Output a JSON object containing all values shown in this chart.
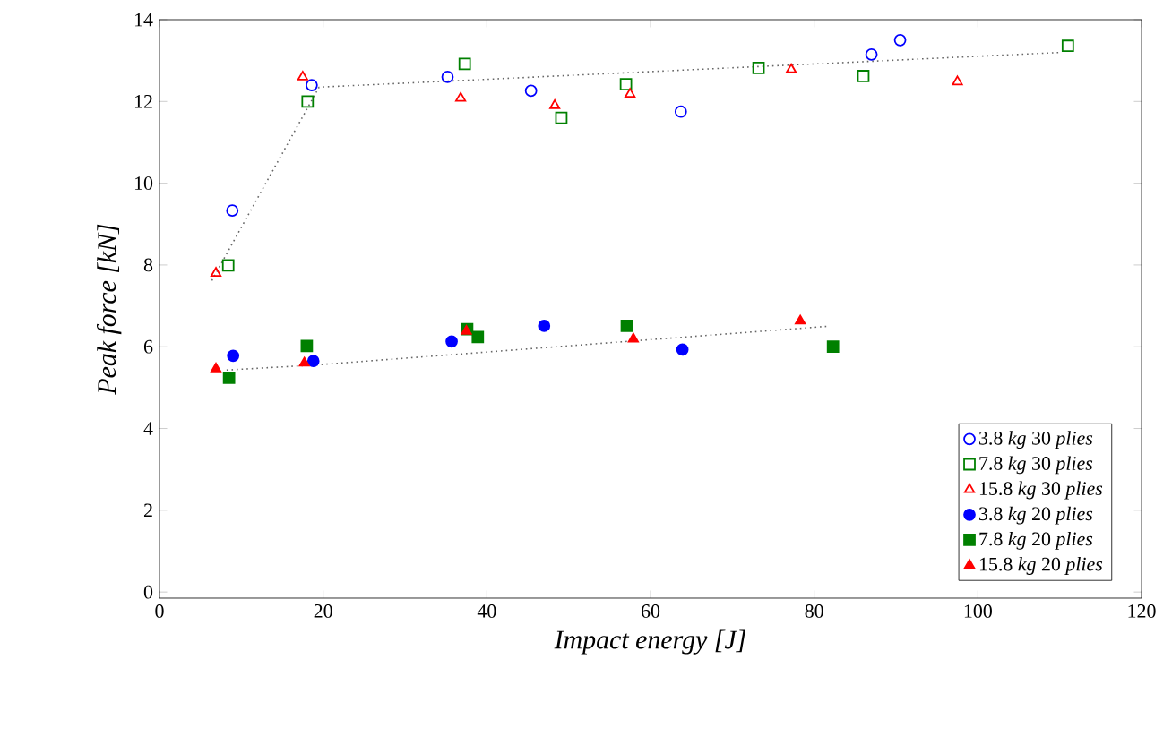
{
  "chart_data": {
    "type": "scatter",
    "xlabel": "Impact energy [J]",
    "ylabel": "Peak force [kN]",
    "xlim": [
      0,
      120
    ],
    "ylim": [
      -0.15,
      14
    ],
    "xticks": [
      0,
      20,
      40,
      60,
      80,
      100,
      120
    ],
    "yticks": [
      0,
      2,
      4,
      6,
      8,
      10,
      12,
      14
    ],
    "grid": false,
    "legend": "bottom right",
    "series": [
      {
        "name": "3.8 *kg* 30 *plies*",
        "color": "#0000ff",
        "marker": "circle",
        "x": [
          8.9,
          18.6,
          35.2,
          45.4,
          63.7,
          87.0,
          90.5
        ],
        "values": [
          9.33,
          12.4,
          12.6,
          12.26,
          11.75,
          13.15,
          13.5
        ]
      },
      {
        "name": "7.8 *kg* 30 *plies*",
        "color": "#008000",
        "marker": "square",
        "x": [
          8.4,
          18.1,
          37.3,
          49.1,
          57.0,
          73.2,
          86.0,
          111.0
        ],
        "values": [
          7.99,
          12.0,
          12.92,
          11.6,
          12.42,
          12.82,
          12.62,
          13.36
        ]
      },
      {
        "name": "15.8 *kg* 30 *plies*",
        "color": "#ff0000",
        "marker": "triangle",
        "x": [
          6.9,
          17.5,
          36.8,
          48.3,
          57.5,
          77.2,
          97.5
        ],
        "values": [
          7.8,
          12.6,
          12.08,
          11.9,
          12.18,
          12.78,
          12.48
        ]
      },
      {
        "name": "3.8 *kg* 20 *plies*",
        "color": "#0000ff",
        "marker": "circle",
        "x": [
          9.0,
          18.8,
          35.7,
          47.0,
          63.9
        ],
        "values": [
          5.78,
          5.65,
          6.13,
          6.51,
          5.93
        ]
      },
      {
        "name": "7.8 *kg* 20 *plies*",
        "color": "#008000",
        "marker": "square",
        "x": [
          8.5,
          18.0,
          37.6,
          38.9,
          57.1,
          82.3
        ],
        "values": [
          5.24,
          6.02,
          6.43,
          6.24,
          6.51,
          6.0
        ]
      },
      {
        "name": "15.8 *kg* 20 *plies*",
        "color": "#ff0000",
        "marker": "triangle",
        "x": [
          6.9,
          17.7,
          37.5,
          57.9,
          78.3
        ],
        "values": [
          5.46,
          5.6,
          6.38,
          6.19,
          6.63
        ]
      },
      {
        "type": "line",
        "color": "#666666",
        "marker": "none",
        "line_style": "dotted",
        "x": [
          6.4,
          19.5,
          110.2
        ],
        "values": [
          7.62,
          12.35,
          13.2
        ]
      },
      {
        "type": "line",
        "color": "#666666",
        "marker": "none",
        "line_style": "dotted",
        "x": [
          8.2,
          18.8,
          81.6
        ],
        "values": [
          5.43,
          5.55,
          6.5
        ]
      }
    ]
  }
}
